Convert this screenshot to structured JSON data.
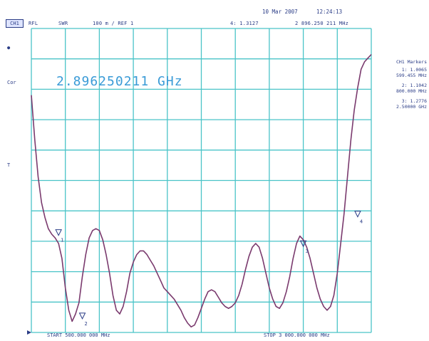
{
  "header": {
    "channel": "CH1",
    "format": "RFL",
    "measurement": "SWR",
    "scale": "100 m / REF 1",
    "active_marker": "4: 1.3127",
    "active_freq": "2 896.250 211 MHz",
    "date": "10 Mar 2007",
    "time": "12:24:13"
  },
  "side_labels": {
    "dot": "●",
    "cor": "Cor",
    "ref_arrow": "T"
  },
  "marker_readout": "2.896250211 GHz",
  "marker_panel": {
    "title": "CH1 Markers",
    "entries": [
      {
        "value": "1: 1.0065",
        "freq": "599.455 MHz"
      },
      {
        "value": "2: 1.1042",
        "freq": "800.000 MHz"
      },
      {
        "value": "3: 1.2776",
        "freq": "2.50000 GHz"
      }
    ]
  },
  "sweep": {
    "start": "START 500.000 000 MHz",
    "stop": "STOP 3 000.000 000 MHz"
  },
  "markers": [
    {
      "id": "1",
      "x": 0.08,
      "y": 1.24
    },
    {
      "id": "2",
      "x": 0.15,
      "y": 1.015
    },
    {
      "id": "3",
      "x": 0.8,
      "y": 1.21
    },
    {
      "id": "4",
      "x": 0.96,
      "y": 1.29
    }
  ],
  "trace": {
    "color": "#7a3a6e",
    "x": [
      0,
      0.01,
      0.02,
      0.03,
      0.04,
      0.05,
      0.06,
      0.07,
      0.08,
      0.09,
      0.1,
      0.11,
      0.12,
      0.13,
      0.14,
      0.15,
      0.16,
      0.17,
      0.18,
      0.19,
      0.2,
      0.21,
      0.22,
      0.23,
      0.24,
      0.25,
      0.26,
      0.27,
      0.28,
      0.29,
      0.3,
      0.31,
      0.32,
      0.33,
      0.34,
      0.35,
      0.36,
      0.37,
      0.38,
      0.39,
      0.4,
      0.41,
      0.42,
      0.43,
      0.44,
      0.45,
      0.46,
      0.47,
      0.48,
      0.49,
      0.5,
      0.51,
      0.52,
      0.53,
      0.54,
      0.55,
      0.56,
      0.57,
      0.58,
      0.59,
      0.6,
      0.61,
      0.62,
      0.63,
      0.64,
      0.65,
      0.66,
      0.67,
      0.68,
      0.69,
      0.7,
      0.71,
      0.72,
      0.73,
      0.74,
      0.75,
      0.76,
      0.77,
      0.78,
      0.79,
      0.8,
      0.81,
      0.82,
      0.83,
      0.84,
      0.85,
      0.86,
      0.87,
      0.88,
      0.89,
      0.9,
      0.91,
      0.92,
      0.93,
      0.94,
      0.95,
      0.96,
      0.97,
      0.98,
      0.99,
      1.0
    ],
    "y": [
      1.62,
      1.5,
      1.4,
      1.33,
      1.29,
      1.26,
      1.245,
      1.235,
      1.22,
      1.18,
      1.1,
      1.04,
      1.01,
      1.03,
      1.06,
      1.13,
      1.19,
      1.235,
      1.255,
      1.26,
      1.255,
      1.23,
      1.19,
      1.14,
      1.08,
      1.04,
      1.03,
      1.05,
      1.09,
      1.14,
      1.17,
      1.19,
      1.2,
      1.2,
      1.19,
      1.175,
      1.16,
      1.14,
      1.12,
      1.1,
      1.09,
      1.08,
      1.07,
      1.055,
      1.04,
      1.02,
      1.005,
      0.995,
      1.0,
      1.02,
      1.045,
      1.07,
      1.09,
      1.095,
      1.09,
      1.075,
      1.06,
      1.05,
      1.045,
      1.05,
      1.06,
      1.08,
      1.11,
      1.15,
      1.185,
      1.21,
      1.22,
      1.21,
      1.18,
      1.14,
      1.1,
      1.07,
      1.05,
      1.045,
      1.06,
      1.09,
      1.13,
      1.18,
      1.22,
      1.24,
      1.23,
      1.21,
      1.18,
      1.14,
      1.1,
      1.07,
      1.05,
      1.04,
      1.05,
      1.08,
      1.14,
      1.22,
      1.3,
      1.4,
      1.5,
      1.58,
      1.64,
      1.69,
      1.71,
      1.72,
      1.73
    ],
    "y_top": 1.8,
    "y_bottom": 0.98
  },
  "colors": {
    "grid": "#4ac4c8",
    "text": "#2a3c86",
    "readout": "#3a9bd7"
  }
}
